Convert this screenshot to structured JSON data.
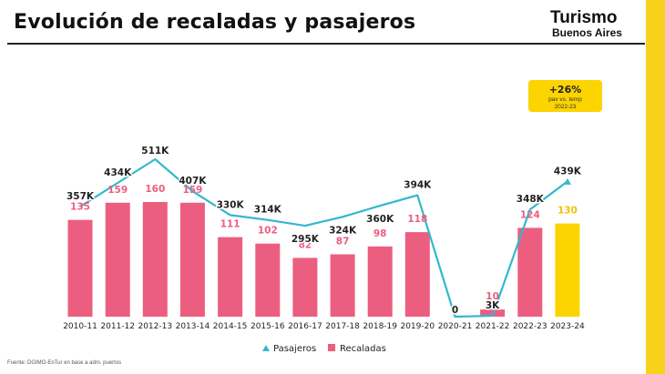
{
  "header": {
    "title": "Evolución de recaladas y pasajeros",
    "logo_line1": "Turismo",
    "logo_line2": "Buenos Aires"
  },
  "source": "Fuente: DGIMO-EnTur en base a adm. puertos",
  "badge": {
    "value": "+26%",
    "line1": "pax vs. temp",
    "line2": "2022-23"
  },
  "colors": {
    "bar": "#ec5e80",
    "bar_highlight": "#fcd400",
    "line": "#33b7cf",
    "bar_label": "#ec5e80",
    "bar_label_highlight": "#f2c200",
    "badge_bg": "#fcd400",
    "side_bar": "#f7d21b"
  },
  "chart_data": {
    "type": "bar",
    "title": "Evolución de recaladas y pasajeros",
    "categories": [
      "2010-11",
      "2011-12",
      "2012-13",
      "2013-14",
      "2014-15",
      "2015-16",
      "2016-17",
      "2017-18",
      "2018-19",
      "2019-20",
      "2020-21",
      "2021-22",
      "2022-23",
      "2023-24"
    ],
    "series": [
      {
        "name": "Recaladas",
        "type": "bar",
        "values": [
          135,
          159,
          160,
          159,
          111,
          102,
          82,
          87,
          98,
          118,
          0,
          10,
          124,
          130
        ],
        "labels": [
          "135",
          "159",
          "160",
          "159",
          "111",
          "102",
          "82",
          "87",
          "98",
          "118",
          "",
          "10",
          "124",
          "130"
        ]
      },
      {
        "name": "Pasajeros",
        "type": "line",
        "values": [
          357,
          434,
          511,
          407,
          330,
          314,
          295,
          324,
          360,
          394,
          0,
          3,
          348,
          439
        ],
        "labels": [
          "357K",
          "434K",
          "511K",
          "407K",
          "330K",
          "314K",
          "295K",
          "324K",
          "360K",
          "394K",
          "0",
          "3K",
          "348K",
          "439K"
        ]
      }
    ],
    "highlight_category": "2023-24",
    "legend": [
      "Pasajeros",
      "Recaladas"
    ],
    "legend_position": "bottom",
    "grid": false
  }
}
